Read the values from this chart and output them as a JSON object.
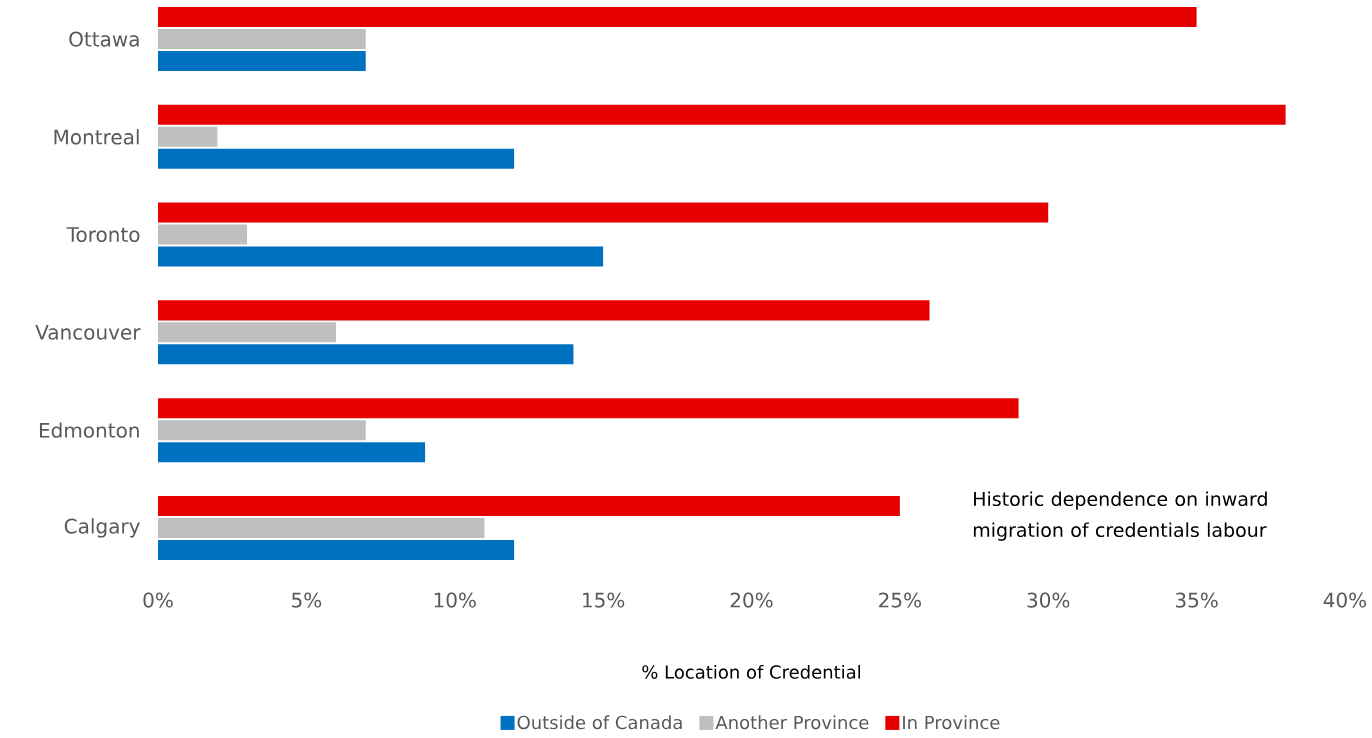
{
  "chart_data": {
    "type": "bar",
    "orientation": "horizontal",
    "categories": [
      "Ottawa",
      "Montreal",
      "Toronto",
      "Vancouver",
      "Edmonton",
      "Calgary"
    ],
    "series": [
      {
        "name": "Outside of Canada",
        "color": "#0070c0",
        "values": [
          7,
          12,
          15,
          14,
          9,
          12
        ]
      },
      {
        "name": "Another Province",
        "color": "#bfbfbf",
        "values": [
          7,
          2,
          3,
          6,
          7,
          11
        ]
      },
      {
        "name": "In Province",
        "color": "#e60000",
        "values": [
          35,
          38,
          30,
          26,
          29,
          25
        ]
      }
    ],
    "xlim": [
      0,
      40
    ],
    "xticks": [
      {
        "value": 0,
        "label": "0%"
      },
      {
        "value": 5,
        "label": "5%"
      },
      {
        "value": 10,
        "label": "10%"
      },
      {
        "value": 15,
        "label": "15%"
      },
      {
        "value": 20,
        "label": "20%"
      },
      {
        "value": 25,
        "label": "25%"
      },
      {
        "value": 30,
        "label": "30%"
      },
      {
        "value": 35,
        "label": "35%"
      },
      {
        "value": 40,
        "label": "40%"
      }
    ],
    "xlabel": "% Location of Credential",
    "legend": "bottom",
    "annotations": [
      "Historic dependence on inward migration of credentials labour"
    ]
  }
}
